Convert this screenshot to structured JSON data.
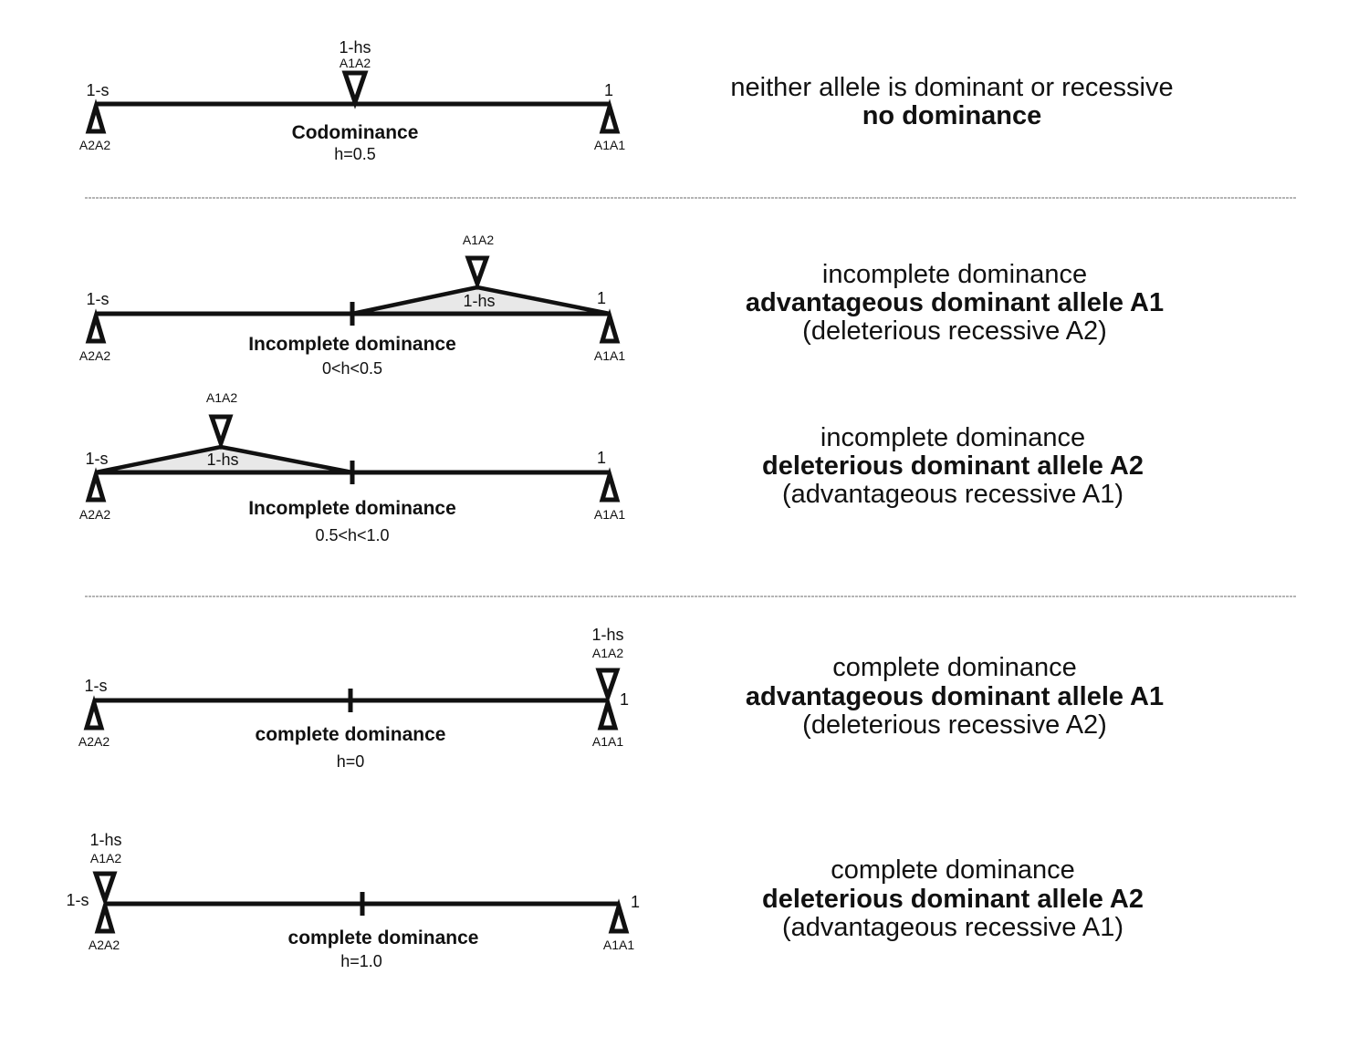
{
  "panels": [
    {
      "id": "codominance",
      "left_fitness": "1-s",
      "right_fitness": "1",
      "het_fitness": "1-hs",
      "left_genotype": "A2A2",
      "right_genotype": "A1A1",
      "het_genotype": "A1A2",
      "h": 0.5,
      "caption": "Codominance",
      "h_text": "h=0.5",
      "description": [
        "neither allele is dominant or recessive",
        "no dominance"
      ]
    },
    {
      "id": "incomplete-advantageous",
      "left_fitness": "1-s",
      "right_fitness": "1",
      "het_fitness": "1-hs",
      "left_genotype": "A2A2",
      "right_genotype": "A1A1",
      "het_genotype": "A1A2",
      "h": 0.25,
      "caption": "Incomplete dominance",
      "h_text": "0<h<0.5",
      "description": [
        "incomplete dominance",
        "advantageous dominant allele A1",
        "(deleterious recessive A2)"
      ]
    },
    {
      "id": "incomplete-deleterious",
      "left_fitness": "1-s",
      "right_fitness": "1",
      "het_fitness": "1-hs",
      "left_genotype": "A2A2",
      "right_genotype": "A1A1",
      "het_genotype": "A1A2",
      "h": 0.75,
      "caption": "Incomplete dominance",
      "h_text": "0.5<h<1.0",
      "description": [
        "incomplete dominance",
        "deleterious dominant allele A2",
        "(advantageous recessive A1)"
      ]
    },
    {
      "id": "complete-advantageous",
      "left_fitness": "1-s",
      "right_fitness": "1",
      "het_fitness": "1-hs",
      "left_genotype": "A2A2",
      "right_genotype": "A1A1",
      "het_genotype": "A1A2",
      "h": 0,
      "caption": "complete dominance",
      "h_text": "h=0",
      "description": [
        "complete dominance",
        "advantageous dominant allele A1",
        "(deleterious recessive A2)"
      ]
    },
    {
      "id": "complete-deleterious",
      "left_fitness": "1-s",
      "right_fitness": "1",
      "het_fitness": "1-hs",
      "left_genotype": "A2A2",
      "right_genotype": "A1A1",
      "het_genotype": "A1A2",
      "h": 1.0,
      "caption": "complete dominance",
      "h_text": "h=1.0",
      "description": [
        "complete dominance",
        "deleterious dominant allele A2",
        "(advantageous recessive A1)"
      ]
    }
  ],
  "colors": {
    "ink": "#111111",
    "wedge_fill": "#e8e8e8",
    "divider": "#b5b5b5",
    "background": "#ffffff"
  }
}
